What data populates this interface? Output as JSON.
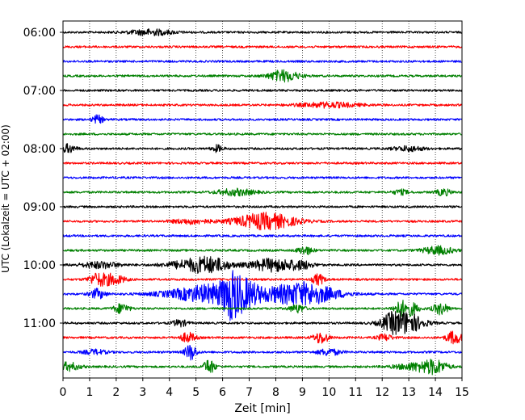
{
  "chart_data": {
    "type": "line",
    "title": "",
    "xlabel": "Zeit  [min]",
    "ylabel": "UTC (Lokalzeit = UTC + 02:00)",
    "xlim": [
      0,
      15
    ],
    "x_ticks": [
      "0",
      "1",
      "2",
      "3",
      "4",
      "5",
      "6",
      "7",
      "8",
      "9",
      "10",
      "11",
      "12",
      "13",
      "14",
      "15"
    ],
    "y_ticks": [
      "06:00",
      "07:00",
      "08:00",
      "09:00",
      "10:00",
      "11:00"
    ],
    "grid": "vertical dotted",
    "trace_colors": [
      "#000000",
      "#ff0000",
      "#0000ff",
      "#008000"
    ],
    "traces": [
      {
        "start": "06:00",
        "color": "black",
        "events": [
          [
            3.3,
            3.5,
            0.6
          ]
        ]
      },
      {
        "start": "06:15",
        "color": "red",
        "events": []
      },
      {
        "start": "06:30",
        "color": "blue",
        "events": []
      },
      {
        "start": "06:45",
        "color": "green",
        "events": [
          [
            8.3,
            7,
            0.4
          ]
        ]
      },
      {
        "start": "07:00",
        "color": "black",
        "events": []
      },
      {
        "start": "07:15",
        "color": "red",
        "events": [
          [
            10.0,
            3,
            0.8
          ]
        ]
      },
      {
        "start": "07:30",
        "color": "blue",
        "events": [
          [
            1.3,
            5,
            0.15
          ]
        ]
      },
      {
        "start": "07:45",
        "color": "green",
        "events": []
      },
      {
        "start": "08:00",
        "color": "black",
        "events": [
          [
            0.2,
            5,
            0.2
          ],
          [
            5.8,
            4,
            0.15
          ],
          [
            13.0,
            3,
            0.4
          ]
        ]
      },
      {
        "start": "08:15",
        "color": "red",
        "events": []
      },
      {
        "start": "08:30",
        "color": "blue",
        "events": []
      },
      {
        "start": "08:45",
        "color": "green",
        "events": [
          [
            6.5,
            4,
            0.5
          ],
          [
            12.7,
            3,
            0.2
          ],
          [
            14.3,
            4,
            0.2
          ]
        ]
      },
      {
        "start": "09:00",
        "color": "black",
        "events": []
      },
      {
        "start": "09:15",
        "color": "red",
        "events": [
          [
            7.6,
            10,
            0.8
          ],
          [
            4.8,
            3,
            0.5
          ]
        ]
      },
      {
        "start": "09:30",
        "color": "blue",
        "events": []
      },
      {
        "start": "09:45",
        "color": "green",
        "events": [
          [
            9.1,
            5,
            0.2
          ],
          [
            14.1,
            5,
            0.4
          ]
        ]
      },
      {
        "start": "10:00",
        "color": "black",
        "events": [
          [
            1.4,
            4,
            0.5
          ],
          [
            4.9,
            6,
            0.7
          ],
          [
            5.6,
            6,
            0.5
          ],
          [
            7.9,
            8,
            0.6
          ],
          [
            9.0,
            4,
            0.3
          ]
        ]
      },
      {
        "start": "10:15",
        "color": "red",
        "events": [
          [
            1.3,
            7,
            0.25
          ],
          [
            1.9,
            6,
            0.3
          ],
          [
            9.6,
            7,
            0.15
          ]
        ]
      },
      {
        "start": "10:30",
        "color": "blue",
        "events": [
          [
            5.8,
            12,
            1.2
          ],
          [
            6.3,
            14,
            0.2
          ],
          [
            6.7,
            12,
            0.4
          ],
          [
            9.0,
            14,
            0.9
          ],
          [
            1.3,
            6,
            0.2
          ]
        ]
      },
      {
        "start": "10:45",
        "color": "green",
        "events": [
          [
            2.2,
            6,
            0.2
          ],
          [
            8.8,
            5,
            0.2
          ],
          [
            12.7,
            8,
            0.2
          ],
          [
            13.1,
            7,
            0.2
          ],
          [
            14.2,
            7,
            0.2
          ]
        ]
      },
      {
        "start": "11:00",
        "color": "black",
        "events": [
          [
            12.8,
            14,
            0.5
          ],
          [
            4.4,
            4,
            0.2
          ],
          [
            12.3,
            4,
            0.2
          ]
        ]
      },
      {
        "start": "11:15",
        "color": "red",
        "events": [
          [
            4.7,
            6,
            0.2
          ],
          [
            9.7,
            7,
            0.2
          ],
          [
            12.1,
            4,
            0.2
          ],
          [
            14.7,
            8,
            0.2
          ]
        ]
      },
      {
        "start": "11:30",
        "color": "blue",
        "events": [
          [
            4.8,
            10,
            0.15
          ],
          [
            10.0,
            4,
            0.3
          ],
          [
            1.2,
            3,
            0.3
          ]
        ]
      },
      {
        "start": "11:45",
        "color": "green",
        "events": [
          [
            5.5,
            9,
            0.15
          ],
          [
            0.2,
            5,
            0.3
          ],
          [
            13.4,
            5,
            0.6
          ],
          [
            14.0,
            6,
            0.3
          ]
        ]
      }
    ]
  }
}
